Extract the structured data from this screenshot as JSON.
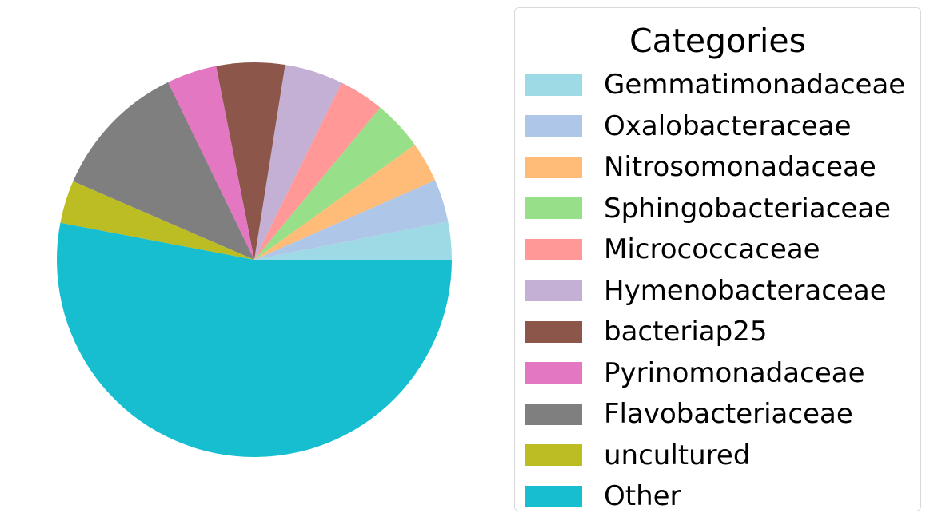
{
  "chart_data": {
    "type": "pie",
    "legend_title": "Categories",
    "legend_position": "right",
    "start_angle_deg": 0,
    "direction": "counterclockwise",
    "slices": [
      {
        "label": "Gemmatimonadaceae",
        "value": 3.1,
        "color": "#9edae5"
      },
      {
        "label": "Oxalobacteraceae",
        "value": 3.5,
        "color": "#aec7e8"
      },
      {
        "label": "Nitrosomonadaceae",
        "value": 3.3,
        "color": "#ffbb78"
      },
      {
        "label": "Sphingobacteriaceae",
        "value": 4.1,
        "color": "#98df8a"
      },
      {
        "label": "Micrococcaceae",
        "value": 3.7,
        "color": "#ff9896"
      },
      {
        "label": "Hymenobacteraceae",
        "value": 4.8,
        "color": "#c5b0d5"
      },
      {
        "label": "bacteriap25",
        "value": 5.6,
        "color": "#8c564b"
      },
      {
        "label": "Pyrinomonadaceae",
        "value": 4.1,
        "color": "#e377c2"
      },
      {
        "label": "Flavobacteriaceae",
        "value": 11.3,
        "color": "#7f7f7f"
      },
      {
        "label": "uncultured",
        "value": 3.5,
        "color": "#bcbd22"
      },
      {
        "label": "Other",
        "value": 53.0,
        "color": "#17becf"
      }
    ]
  }
}
